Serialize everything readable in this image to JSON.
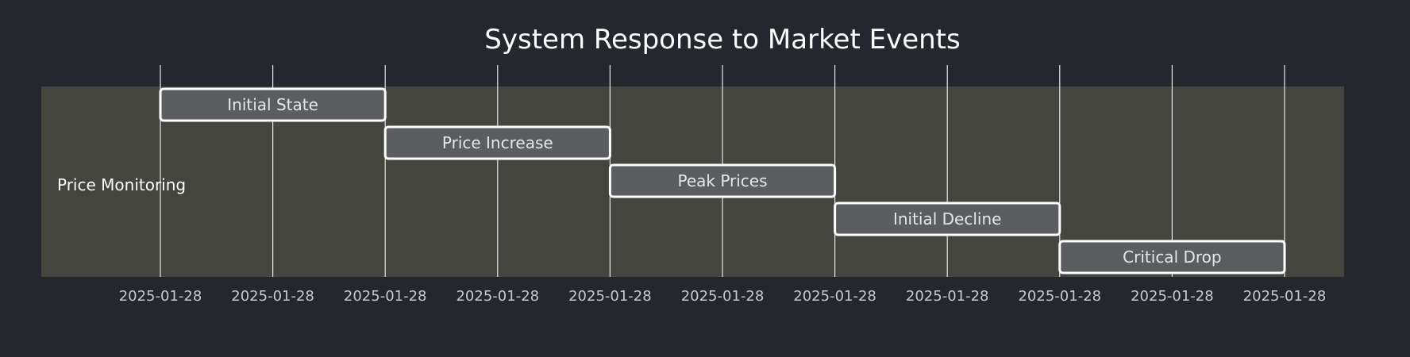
{
  "chart_data": {
    "type": "gantt",
    "title": "System Response to Market Events",
    "section": "Price Monitoring",
    "tick_labels": [
      "2025-01-28",
      "2025-01-28",
      "2025-01-28",
      "2025-01-28",
      "2025-01-28",
      "2025-01-28",
      "2025-01-28",
      "2025-01-28",
      "2025-01-28",
      "2025-01-28",
      "2025-01-28"
    ],
    "tasks": [
      {
        "name": "Initial State",
        "start": 0,
        "end": 2
      },
      {
        "name": "Price Increase",
        "start": 2,
        "end": 4
      },
      {
        "name": "Peak Prices",
        "start": 4,
        "end": 6
      },
      {
        "name": "Initial Decline",
        "start": 6,
        "end": 8
      },
      {
        "name": "Critical Drop",
        "start": 8,
        "end": 10
      }
    ],
    "grid": true
  },
  "colors": {
    "background": "#24272d",
    "section_band": "#45453f",
    "grid": "#e6e6e6",
    "task_fill": "#5b5e60",
    "task_border": "#ffffff",
    "task_text": "#e6e6e6",
    "title": "#ffffff",
    "tick_text": "#c8c8c8"
  }
}
